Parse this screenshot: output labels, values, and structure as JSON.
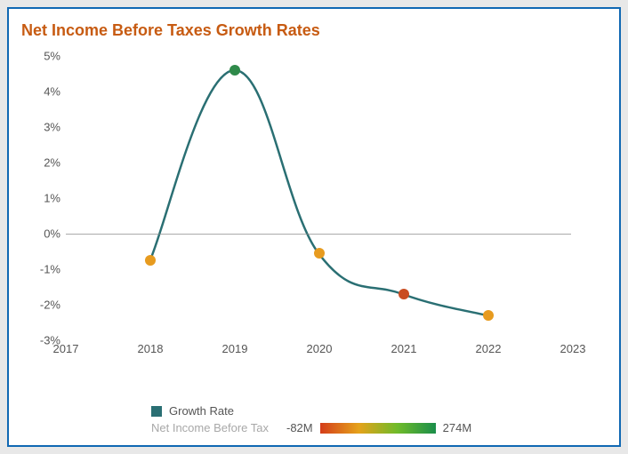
{
  "chart": {
    "type": "line",
    "title": "Net Income Before Taxes Growth Rates",
    "title_color": "#c75b12",
    "title_fontsize": 18,
    "background_color": "#ffffff",
    "border_color": "#1068b3",
    "line_color": "#2a6f73",
    "line_width": 2.5,
    "marker_radius": 6,
    "x_categories": [
      "2017",
      "2018",
      "2019",
      "2020",
      "2021",
      "2022",
      "2023"
    ],
    "ylim": [
      -3,
      5
    ],
    "ytick_format": "{v}%",
    "yticks": [
      -3,
      -2,
      -1,
      0,
      1,
      2,
      3,
      4,
      5
    ],
    "zero_line_color": "#888888",
    "axis_label_color": "#555555",
    "axis_fontsize": 13,
    "series": [
      {
        "name": "Growth Rate",
        "points": [
          {
            "x": "2018",
            "y": -0.75,
            "marker_color": "#e79b1f"
          },
          {
            "x": "2019",
            "y": 4.6,
            "marker_color": "#2f8a4a"
          },
          {
            "x": "2020",
            "y": -0.55,
            "marker_color": "#e79b1f"
          },
          {
            "x": "2021",
            "y": -1.7,
            "marker_color": "#c94d22"
          },
          {
            "x": "2022",
            "y": -2.3,
            "marker_color": "#e79b1f"
          }
        ]
      }
    ],
    "legend": {
      "series_label": "Growth Rate",
      "series_swatch_color": "#2a6f73",
      "gradient_label": "Net Income Before Tax",
      "gradient_low_label": "-82M",
      "gradient_high_label": "274M",
      "gradient_stops": [
        "#d43d1a",
        "#e5a21a",
        "#6fbb2a",
        "#1a8e4a"
      ],
      "label_color": "#888888",
      "value_color": "#555555"
    }
  }
}
